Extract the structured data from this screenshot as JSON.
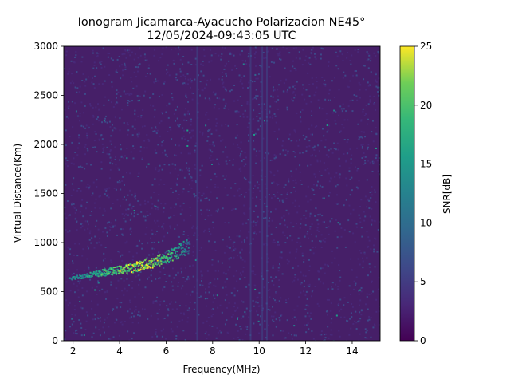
{
  "chart_data": {
    "type": "heatmap",
    "title": "Ionogram Jicamarca-Ayacucho Polarizacion NE45°",
    "subtitle": "12/05/2024-09:43:05 UTC",
    "xlabel": "Frequency(MHz)",
    "ylabel": "Virtual Distance(Km)",
    "xlim": [
      1.6,
      15.2
    ],
    "ylim": [
      0,
      3000
    ],
    "xticks": [
      "2",
      "4",
      "6",
      "8",
      "10",
      "12",
      "14"
    ],
    "xtick_values": [
      2,
      4,
      6,
      8,
      10,
      12,
      14
    ],
    "yticks": [
      "0",
      "500",
      "1000",
      "1500",
      "2000",
      "2500",
      "3000"
    ],
    "ytick_values": [
      0,
      500,
      1000,
      1500,
      2000,
      2500,
      3000
    ],
    "colorbar": {
      "label": "SNR[dB]",
      "range": [
        0,
        25
      ],
      "ticks": [
        "0",
        "5",
        "10",
        "15",
        "20",
        "25"
      ],
      "tick_values": [
        0,
        5,
        10,
        15,
        20,
        25
      ],
      "colormap": "viridis"
    },
    "features": [
      {
        "freq": 1.8,
        "dist": 640,
        "snr": 13
      },
      {
        "freq": 2.5,
        "dist": 670,
        "snr": 14
      },
      {
        "freq": 3.0,
        "dist": 690,
        "snr": 16
      },
      {
        "freq": 3.5,
        "dist": 710,
        "snr": 18
      },
      {
        "freq": 4.0,
        "dist": 730,
        "snr": 20
      },
      {
        "freq": 4.5,
        "dist": 750,
        "snr": 22
      },
      {
        "freq": 5.0,
        "dist": 780,
        "snr": 23
      },
      {
        "freq": 5.5,
        "dist": 810,
        "snr": 22
      },
      {
        "freq": 6.0,
        "dist": 860,
        "snr": 19
      },
      {
        "freq": 6.5,
        "dist": 920,
        "snr": 15
      },
      {
        "freq": 7.0,
        "dist": 980,
        "snr": 10
      }
    ],
    "grid": false
  }
}
